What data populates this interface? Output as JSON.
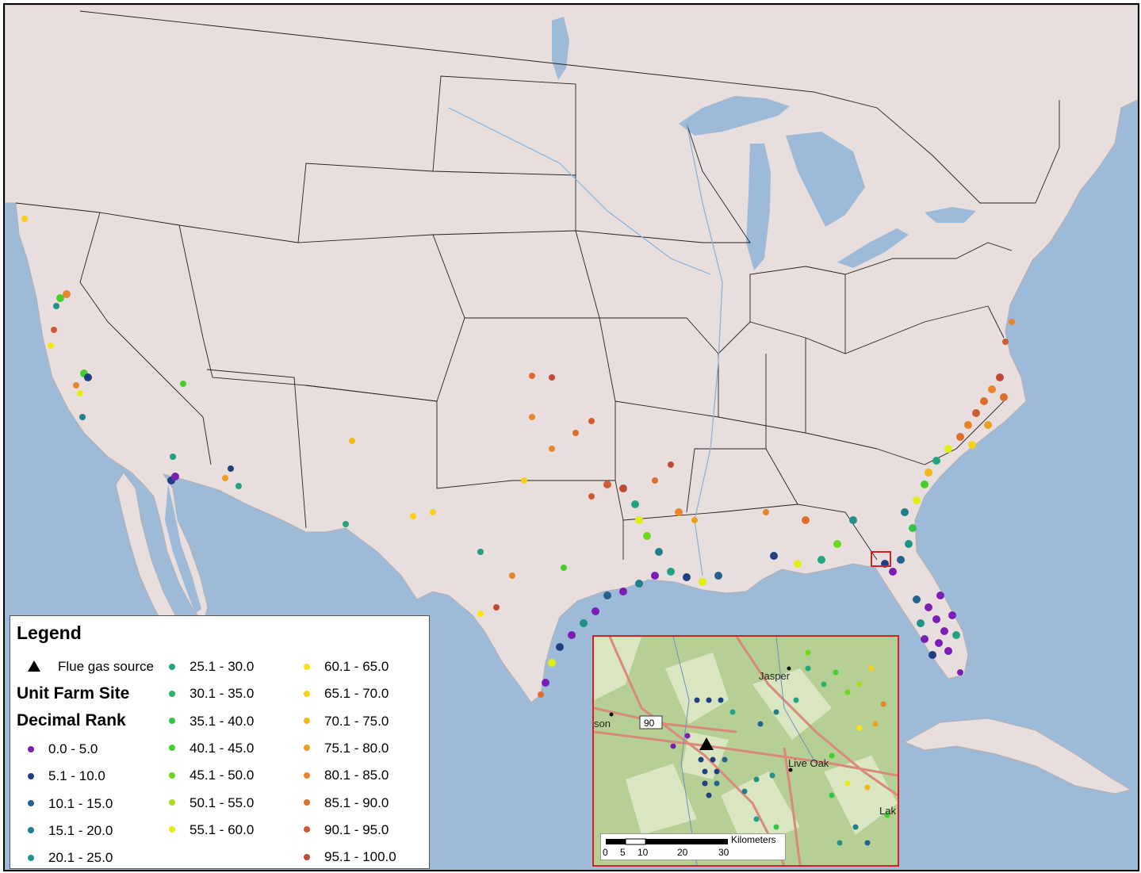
{
  "legend": {
    "title": "Legend",
    "flue_gas_label": "Flue gas source",
    "subtitle_1": "Unit Farm Site",
    "subtitle_2": "Decimal Rank",
    "classes": [
      {
        "label": "0.0 - 5.0",
        "color": "#7a1fb5"
      },
      {
        "label": "5.1 - 10.0",
        "color": "#1f3f82"
      },
      {
        "label": "10.1 - 15.0",
        "color": "#23618f"
      },
      {
        "label": "15.1 - 20.0",
        "color": "#1f7f8c"
      },
      {
        "label": "20.1 - 25.0",
        "color": "#1f938a"
      },
      {
        "label": "25.1 - 30.0",
        "color": "#24a382"
      },
      {
        "label": "30.1 - 35.0",
        "color": "#2bb36a"
      },
      {
        "label": "35.1 - 40.0",
        "color": "#35c44a"
      },
      {
        "label": "40.1 - 45.0",
        "color": "#45cf2c"
      },
      {
        "label": "45.1 - 50.0",
        "color": "#6ed61e"
      },
      {
        "label": "50.1 - 55.0",
        "color": "#a6de1c"
      },
      {
        "label": "55.1 - 60.0",
        "color": "#e2ed12"
      },
      {
        "label": "60.1 - 65.0",
        "color": "#fbe40e"
      },
      {
        "label": "65.1 - 70.0",
        "color": "#f7cf18"
      },
      {
        "label": "70.1 - 75.0",
        "color": "#f2b81a"
      },
      {
        "label": "75.1 - 80.0",
        "color": "#ee9e1e"
      },
      {
        "label": "80.1 - 85.0",
        "color": "#e8852a"
      },
      {
        "label": "85.1 - 90.0",
        "color": "#de6e2e"
      },
      {
        "label": "90.1 - 95.0",
        "color": "#d05a34"
      },
      {
        "label": "95.1 - 100.0",
        "color": "#c14a38"
      }
    ]
  },
  "inset": {
    "places": [
      "Jasper",
      "Live Oak",
      "son",
      "Lak"
    ],
    "route_shield": "90",
    "scale_unit": "Kilometers",
    "scale_ticks": [
      "0",
      "5",
      "10",
      "20",
      "30"
    ]
  }
}
